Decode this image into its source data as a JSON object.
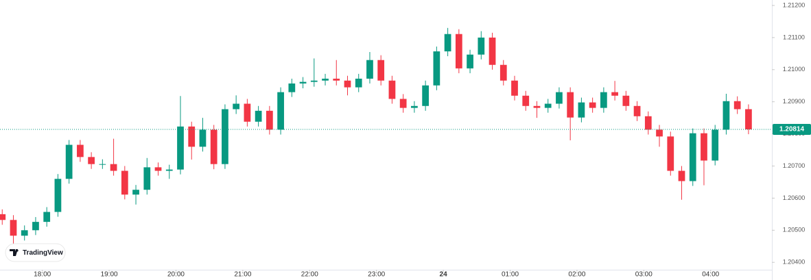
{
  "chart_data": {
    "type": "candlestick",
    "brand": "TradingView",
    "up_color": "#089981",
    "down_color": "#f23645",
    "x": [
      1044,
      1054,
      1064,
      1074,
      1084,
      1094,
      1104,
      1114,
      1124,
      1134,
      1144,
      1154,
      1164,
      1174,
      1184,
      1194,
      1204,
      1214,
      1224,
      1234,
      1244,
      1254,
      1264,
      1274,
      1284,
      1294,
      1304,
      1314,
      1324,
      1334,
      1344,
      1354,
      1364,
      1374,
      1384,
      1394,
      1404,
      1414,
      1424,
      1434,
      1444,
      1454,
      1464,
      1474,
      1484,
      1494,
      1504,
      1514,
      1524,
      1534,
      1544,
      1554,
      1564,
      1574,
      1584,
      1594,
      1604,
      1614,
      1624,
      1634,
      1644,
      1654,
      1664,
      1674,
      1684,
      1694,
      1704,
      1714
    ],
    "open": [
      1.2055,
      1.20532,
      1.20483,
      1.205,
      1.20526,
      1.20557,
      1.2066,
      1.20766,
      1.20728,
      1.20706,
      1.20706,
      1.20685,
      1.20611,
      1.20626,
      1.20696,
      1.20685,
      1.20689,
      1.20823,
      1.2076,
      1.20813,
      1.20706,
      1.20877,
      1.20894,
      1.20838,
      1.20872,
      1.20813,
      1.2093,
      1.20957,
      1.20962,
      1.20966,
      1.20972,
      1.20966,
      1.20945,
      1.20972,
      1.2103,
      1.20966,
      1.20909,
      1.20881,
      1.20887,
      1.20951,
      1.21057,
      1.21111,
      1.21004,
      1.21047,
      1.211,
      1.21015,
      1.20966,
      1.20919,
      1.20887,
      1.20881,
      1.20894,
      1.2093,
      1.20851,
      1.20898,
      1.20881,
      1.2093,
      1.20919,
      1.20887,
      1.20855,
      1.20813,
      1.20792,
      1.20685,
      1.20653,
      1.20802,
      1.20717,
      1.20813,
      1.20902,
      1.20877
    ],
    "high": [
      1.20565,
      1.20547,
      1.20515,
      1.20541,
      1.20572,
      1.20675,
      1.20781,
      1.20781,
      1.20743,
      1.20721,
      1.20785,
      1.207,
      1.20641,
      1.20725,
      1.20711,
      1.20704,
      1.20918,
      1.20838,
      1.2085,
      1.20828,
      1.20892,
      1.2092,
      1.20909,
      1.20887,
      1.20887,
      1.20945,
      1.20972,
      1.20977,
      1.21035,
      1.20987,
      1.2103,
      1.20981,
      1.20987,
      1.21055,
      1.21045,
      1.20981,
      1.20924,
      1.20902,
      1.20966,
      1.21072,
      1.2113,
      1.21126,
      1.21062,
      1.2112,
      1.21115,
      1.2103,
      1.20981,
      1.20934,
      1.20902,
      1.20909,
      1.20945,
      1.20945,
      1.20913,
      1.20913,
      1.20945,
      1.20965,
      1.20934,
      1.20902,
      1.2087,
      1.20828,
      1.20807,
      1.207,
      1.20817,
      1.20817,
      1.20828,
      1.20925,
      1.20917,
      1.20892
    ],
    "low": [
      1.20517,
      1.20455,
      1.20468,
      1.20485,
      1.20511,
      1.20542,
      1.20645,
      1.20713,
      1.20691,
      1.20691,
      1.2067,
      1.20596,
      1.2058,
      1.20611,
      1.2067,
      1.2066,
      1.20674,
      1.2072,
      1.20745,
      1.2069,
      1.20691,
      1.20862,
      1.20823,
      1.20823,
      1.20798,
      1.20798,
      1.20915,
      1.20942,
      1.20947,
      1.20951,
      1.20951,
      1.2092,
      1.2093,
      1.20957,
      1.20951,
      1.20894,
      1.20866,
      1.20866,
      1.20872,
      1.20936,
      1.21042,
      1.20989,
      1.20989,
      1.21032,
      1.21,
      1.20951,
      1.20904,
      1.20872,
      1.2085,
      1.20866,
      1.20879,
      1.2078,
      1.20836,
      1.20866,
      1.20866,
      1.20904,
      1.20872,
      1.2084,
      1.20798,
      1.2076,
      1.2067,
      1.20595,
      1.20638,
      1.2064,
      1.20702,
      1.20798,
      1.20862,
      1.20799
    ],
    "close": [
      1.20532,
      1.20483,
      1.205,
      1.20526,
      1.20557,
      1.2066,
      1.20766,
      1.20728,
      1.20706,
      1.20706,
      1.20685,
      1.20611,
      1.20626,
      1.20696,
      1.20685,
      1.20689,
      1.20823,
      1.2076,
      1.20813,
      1.20706,
      1.20877,
      1.20894,
      1.20838,
      1.20872,
      1.20813,
      1.2093,
      1.20957,
      1.20962,
      1.20966,
      1.20972,
      1.20966,
      1.20945,
      1.20972,
      1.2103,
      1.20966,
      1.20909,
      1.20881,
      1.20887,
      1.20951,
      1.21057,
      1.21111,
      1.21004,
      1.21047,
      1.211,
      1.21015,
      1.20966,
      1.20919,
      1.20887,
      1.20881,
      1.20894,
      1.2093,
      1.20851,
      1.20898,
      1.20881,
      1.2093,
      1.20919,
      1.20887,
      1.20855,
      1.20813,
      1.20792,
      1.20685,
      1.20653,
      1.20802,
      1.20717,
      1.20813,
      1.20902,
      1.20877,
      1.20814
    ],
    "xlim": [
      1042,
      1735
    ],
    "xticks": [
      {
        "value": 1080,
        "label": "18:00"
      },
      {
        "value": 1140,
        "label": "19:00"
      },
      {
        "value": 1200,
        "label": "20:00"
      },
      {
        "value": 1260,
        "label": "21:00"
      },
      {
        "value": 1320,
        "label": "22:00"
      },
      {
        "value": 1380,
        "label": "23:00"
      },
      {
        "value": 1440,
        "label": "24"
      },
      {
        "value": 1500,
        "label": "01:00"
      },
      {
        "value": 1560,
        "label": "02:00"
      },
      {
        "value": 1620,
        "label": "03:00"
      },
      {
        "value": 1680,
        "label": "04:00"
      }
    ],
    "ylim": [
      1.20377,
      1.21217
    ],
    "yticks": [
      {
        "value": 1.204,
        "label": "1.20400"
      },
      {
        "value": 1.205,
        "label": "1.20500"
      },
      {
        "value": 1.206,
        "label": "1.20600"
      },
      {
        "value": 1.207,
        "label": "1.20700"
      },
      {
        "value": 1.208,
        "label": "1.20800"
      },
      {
        "value": 1.209,
        "label": "1.20900"
      },
      {
        "value": 1.21,
        "label": "1.21000"
      },
      {
        "value": 1.211,
        "label": "1.21100"
      },
      {
        "value": 1.212,
        "label": "1.21200"
      }
    ],
    "last_price": {
      "value": 1.20814,
      "label": "1.20814"
    },
    "grid": false
  }
}
